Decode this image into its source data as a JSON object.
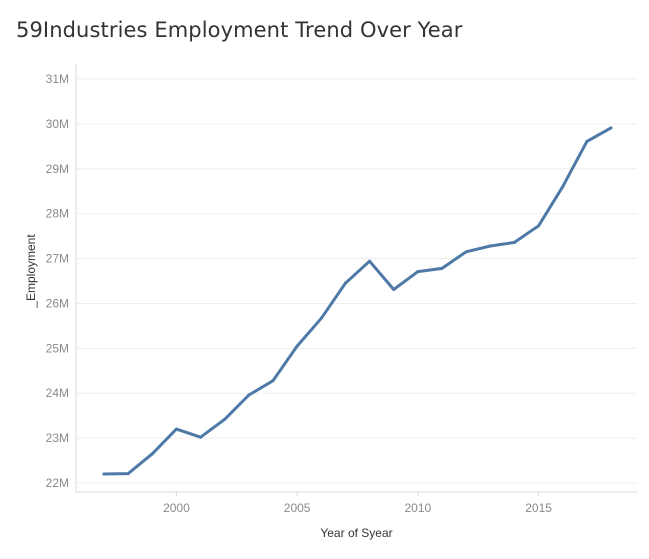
{
  "chart_data": {
    "type": "line",
    "title": "59Industries Employment Trend Over Year",
    "xlabel": "Year of Syear",
    "ylabel": "_Employment",
    "x": [
      1997,
      1998,
      1999,
      2000,
      2001,
      2002,
      2003,
      2004,
      2005,
      2006,
      2007,
      2008,
      2009,
      2010,
      2011,
      2012,
      2013,
      2014,
      2015,
      2016,
      2017,
      2018
    ],
    "series": [
      {
        "values": [
          22.2,
          22.21,
          22.65,
          23.2,
          23.02,
          23.42,
          23.96,
          24.28,
          25.05,
          25.67,
          26.45,
          26.94,
          26.31,
          26.71,
          26.78,
          27.15,
          27.28,
          27.36,
          27.73,
          28.6,
          29.61,
          29.91
        ],
        "color": "#4e79a7"
      }
    ],
    "yunit": "M",
    "ylim": [
      22,
      31
    ],
    "yticks": [
      22,
      23,
      24,
      25,
      26,
      27,
      28,
      29,
      30,
      31
    ],
    "ytick_labels": [
      "22M",
      "23M",
      "24M",
      "25M",
      "26M",
      "27M",
      "28M",
      "29M",
      "30M",
      "31M"
    ],
    "xticks": [
      2000,
      2005,
      2010,
      2015
    ],
    "xtick_labels": [
      "2000",
      "2005",
      "2010",
      "2015"
    ],
    "grid": true,
    "legend": "none"
  }
}
